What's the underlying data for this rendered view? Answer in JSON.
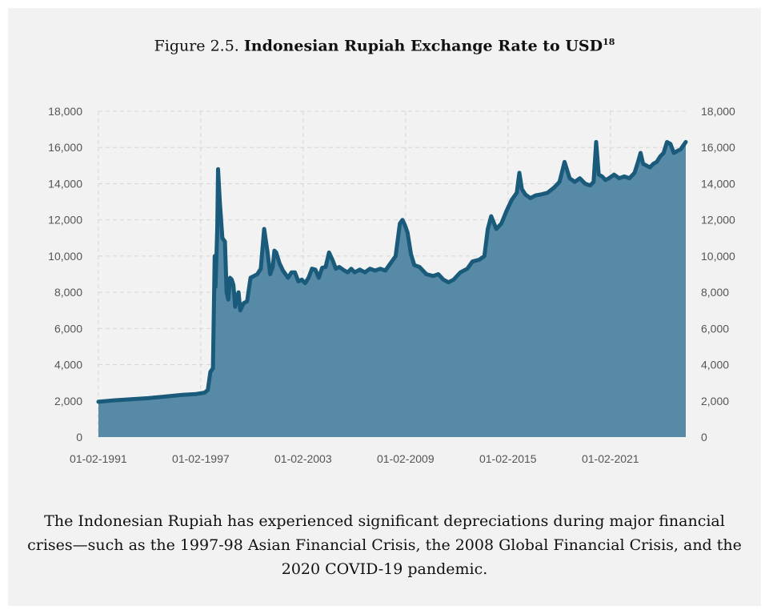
{
  "figure": {
    "label": "Figure 2.5.",
    "title": "Indonesian Rupiah Exchange Rate to USD",
    "footnote": "18"
  },
  "caption": "The Indonesian Rupiah has experienced significant depreciations during major financial crises—such as the 1997-98 Asian Financial Crisis, the 2008 Global Financial Crisis, and the 2020 COVID-19 pandemic.",
  "colors": {
    "line": "#1a5a7a",
    "fill": "#568aa6",
    "grid": "#d6d6d6",
    "background": "#f2f2f2"
  },
  "chart_data": {
    "type": "area",
    "title": "Indonesian Rupiah Exchange Rate to USD",
    "xlabel": "",
    "ylabel": "",
    "x_ticks": [
      "01-02-1991",
      "01-02-1997",
      "01-02-2003",
      "01-02-2009",
      "01-02-2015",
      "01-02-2021"
    ],
    "y_ticks": [
      "0",
      "2,000",
      "4,000",
      "6,000",
      "8,000",
      "10,000",
      "12,000",
      "14,000",
      "16,000",
      "18,000"
    ],
    "xlim": [
      1991.09,
      2025.5
    ],
    "ylim": [
      0,
      18000
    ],
    "grid": true,
    "dual_y_axis": true,
    "series": [
      {
        "x": [
          1991.09,
          1992.0,
          1993.0,
          1994.0,
          1995.0,
          1996.0,
          1996.8,
          1997.3,
          1997.5,
          1997.65,
          1997.8,
          1997.9,
          1997.95,
          1998.05,
          1998.1,
          1998.2,
          1998.35,
          1998.5,
          1998.6,
          1998.7,
          1998.8,
          1998.9,
          1999.0,
          1999.1,
          1999.2,
          1999.3,
          1999.4,
          1999.5,
          1999.6,
          1999.8,
          2000.0,
          2000.2,
          2000.4,
          2000.6,
          2000.8,
          2001.0,
          2001.15,
          2001.3,
          2001.4,
          2001.5,
          2001.7,
          2001.9,
          2002.2,
          2002.4,
          2002.6,
          2002.8,
          2003.0,
          2003.2,
          2003.4,
          2003.6,
          2003.8,
          2004.0,
          2004.2,
          2004.4,
          2004.6,
          2004.8,
          2005.0,
          2005.2,
          2005.5,
          2005.7,
          2005.9,
          2006.1,
          2006.4,
          2006.7,
          2007.0,
          2007.3,
          2007.6,
          2007.9,
          2008.2,
          2008.5,
          2008.75,
          2008.9,
          2009.05,
          2009.2,
          2009.4,
          2009.6,
          2009.9,
          2010.3,
          2010.7,
          2011.0,
          2011.3,
          2011.6,
          2011.9,
          2012.3,
          2012.7,
          2013.0,
          2013.4,
          2013.7,
          2013.9,
          2014.1,
          2014.4,
          2014.7,
          2015.0,
          2015.3,
          2015.6,
          2015.75,
          2015.9,
          2016.1,
          2016.4,
          2016.7,
          2017.0,
          2017.4,
          2017.8,
          2018.1,
          2018.4,
          2018.7,
          2018.85,
          2019.0,
          2019.3,
          2019.6,
          2019.9,
          2020.1,
          2020.25,
          2020.4,
          2020.6,
          2020.8,
          2021.0,
          2021.3,
          2021.6,
          2021.9,
          2022.2,
          2022.5,
          2022.7,
          2022.85,
          2023.0,
          2023.2,
          2023.4,
          2023.6,
          2023.8,
          2024.0,
          2024.2,
          2024.4,
          2024.6,
          2024.8,
          2025.0,
          2025.2,
          2025.5
        ],
        "values": [
          1950,
          2030,
          2090,
          2150,
          2240,
          2330,
          2380,
          2450,
          2600,
          3600,
          3800,
          10000,
          8300,
          11500,
          14800,
          13000,
          11000,
          10800,
          8000,
          7600,
          8800,
          8700,
          8400,
          7200,
          7700,
          8000,
          7000,
          7200,
          7400,
          7500,
          8800,
          8900,
          9000,
          9300,
          11500,
          10200,
          9000,
          9400,
          10300,
          10200,
          9600,
          9200,
          8800,
          9100,
          9100,
          8600,
          8700,
          8500,
          8800,
          9300,
          9250,
          8800,
          9350,
          9400,
          10200,
          9800,
          9300,
          9400,
          9200,
          9100,
          9300,
          9100,
          9250,
          9100,
          9300,
          9200,
          9300,
          9200,
          9600,
          10000,
          11800,
          12000,
          11700,
          11300,
          10100,
          9500,
          9400,
          9000,
          8900,
          9000,
          8700,
          8550,
          8700,
          9100,
          9300,
          9700,
          9800,
          10000,
          11500,
          12200,
          11500,
          11800,
          12500,
          13100,
          13500,
          14600,
          13700,
          13400,
          13200,
          13350,
          13400,
          13500,
          13800,
          14100,
          15200,
          14300,
          14200,
          14100,
          14300,
          14000,
          13900,
          14100,
          16300,
          14500,
          14400,
          14200,
          14300,
          14500,
          14300,
          14400,
          14300,
          14600,
          15200,
          15700,
          15100,
          15000,
          14900,
          15100,
          15200,
          15500,
          15700,
          16300,
          16200,
          15700,
          15800,
          15900,
          16300
        ]
      }
    ]
  }
}
